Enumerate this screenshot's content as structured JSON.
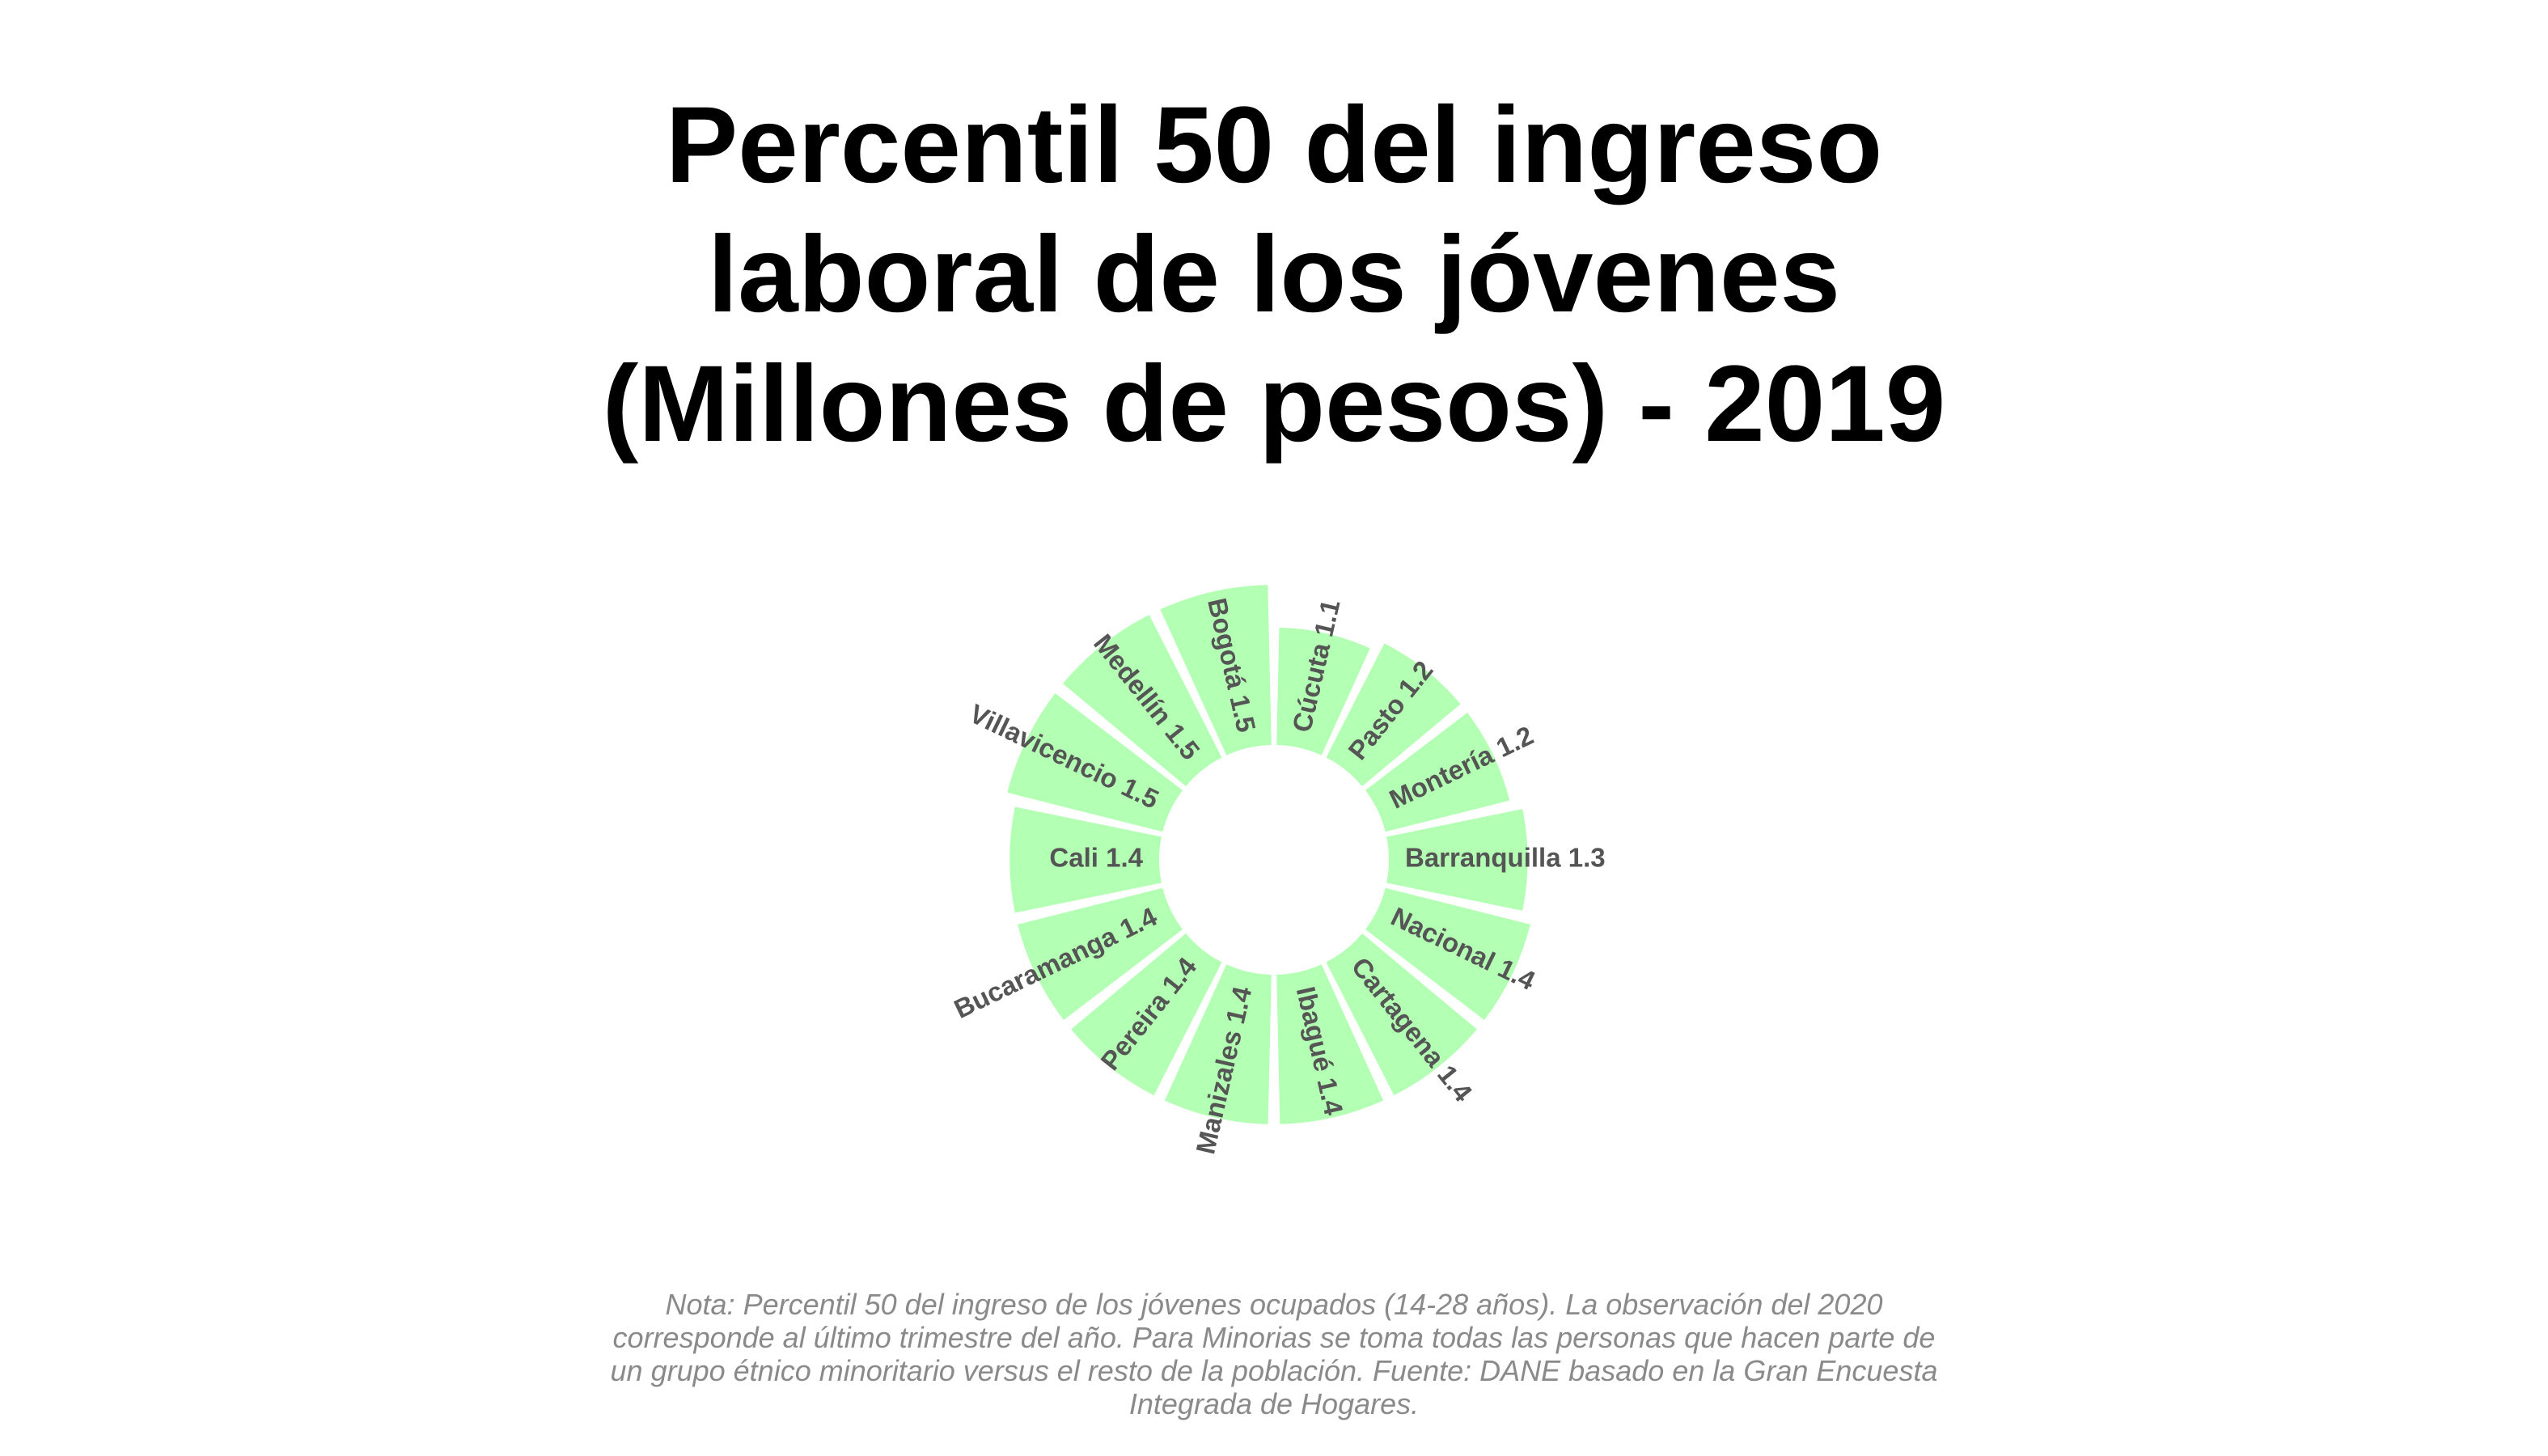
{
  "title_lines": [
    "Percentil 50 del ingreso",
    "laboral de los jóvenes",
    "(Millones de pesos) - 2019"
  ],
  "note_lines": [
    "Nota: Percentil 50 del ingreso de los jóvenes ocupados (14-28 años). La observación del 2020",
    "corresponde al último trimestre del año. Para Minorias se toma todas las personas que hacen parte de",
    "un grupo étnico minoritario versus el resto de la población. Fuente: DANE basado en la Gran Encuesta",
    "Integrada de Hogares."
  ],
  "colors": {
    "bar_fill": "#b3ffb3",
    "label_text": "#555555",
    "title_text": "#000000",
    "note_text": "#8a8a8a"
  },
  "chart_data": {
    "type": "bar",
    "coord": "polar",
    "title": "Percentil 50 del ingreso laboral de los jóvenes (Millones de pesos) - 2019",
    "categories": [
      "Cúcuta",
      "Pasto",
      "Montería",
      "Barranquilla",
      "Nacional",
      "Cartagena",
      "Ibagué",
      "Manizales",
      "Pereira",
      "Bucaramanga",
      "Cali",
      "Villavicencio",
      "Medellín",
      "Bogotá"
    ],
    "values": [
      1.1,
      1.2,
      1.2,
      1.3,
      1.4,
      1.4,
      1.4,
      1.4,
      1.4,
      1.4,
      1.4,
      1.5,
      1.5,
      1.5
    ],
    "labels": [
      "Cúcuta 1.1",
      "Pasto 1.2",
      "Montería 1.2",
      "Barranquilla 1.3",
      "Nacional 1.4",
      "Cartagena 1.4",
      "Ibagué 1.4",
      "Manizales 1.4",
      "Pereira 1.4",
      "Bucaramanga 1.4",
      "Cali 1.4",
      "Villavicencio 1.5",
      "Medellín 1.5",
      "Bogotá 1.5"
    ],
    "grid": false,
    "legend": "none"
  }
}
